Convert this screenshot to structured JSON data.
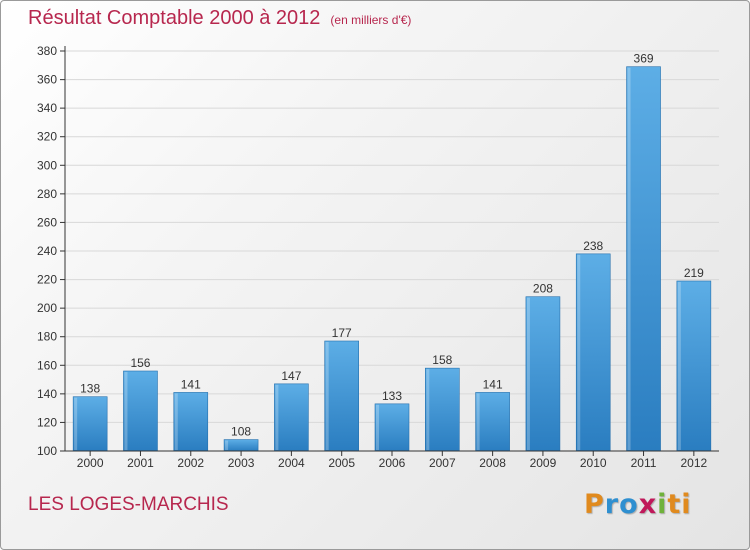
{
  "header": {
    "title": "Résultat Comptable 2000 à 2012",
    "subtitle": "(en milliers d'€)"
  },
  "footer": {
    "place": "LES LOGES-MARCHIS",
    "logo_text": "Proxiti",
    "logo_letters": [
      "P",
      "r",
      "o",
      "x",
      "i",
      "t",
      "i"
    ]
  },
  "colors": {
    "title": "#b7274e",
    "bar_top": "#5daee6",
    "bar_bottom": "#2a7dc0",
    "axis": "#333333",
    "grid": "#d8d8d8"
  },
  "chart_data": {
    "type": "bar",
    "categories": [
      "2000",
      "2001",
      "2002",
      "2003",
      "2004",
      "2005",
      "2006",
      "2007",
      "2008",
      "2009",
      "2010",
      "2011",
      "2012"
    ],
    "values": [
      138,
      156,
      141,
      108,
      147,
      177,
      133,
      158,
      141,
      208,
      238,
      369,
      219
    ],
    "data_labels": [
      "138",
      "156",
      "141",
      "108",
      "147",
      "177",
      "133",
      "158",
      "141",
      "208",
      "238",
      "369",
      "219"
    ],
    "ylim": [
      100,
      380
    ],
    "yticks": [
      "100",
      "120",
      "140",
      "160",
      "180",
      "200",
      "220",
      "240",
      "260",
      "280",
      "300",
      "320",
      "340",
      "360",
      "380"
    ],
    "grid": true
  }
}
